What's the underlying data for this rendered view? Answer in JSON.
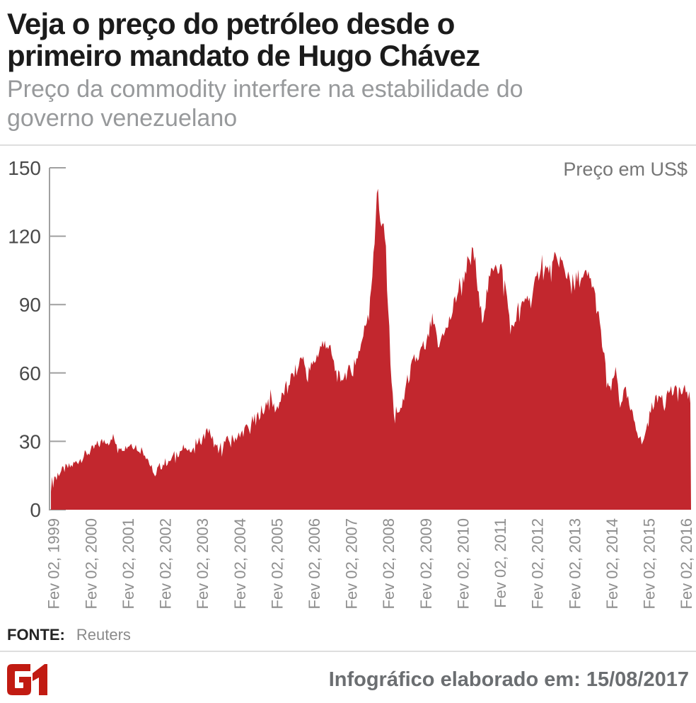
{
  "header": {
    "title": "Veja o preço do petróleo desde o\nprimeiro mandato de Hugo Chávez",
    "subtitle": "Preço da commodity interfere na estabilidade do\ngoverno venezuelano"
  },
  "chart": {
    "unit_label": "Preço em US$"
  },
  "source": {
    "label": "FONTE:",
    "value": "Reuters"
  },
  "footer": {
    "logo_alt": "G1",
    "note": "Infográfico elaborado em: 15/08/2017"
  },
  "colors": {
    "area": "#c2272e",
    "axis": "#a0a0a0",
    "y_label": "#4a4a4a",
    "x_label": "#8e8e8e",
    "logo": "#c11b12"
  },
  "chart_data": {
    "type": "area",
    "title": "Preço do petróleo desde o primeiro mandato de Hugo Chávez",
    "ylabel": "Preço em US$",
    "xlabel": "",
    "ylim": [
      0,
      150
    ],
    "yticks": [
      0,
      30,
      60,
      90,
      120,
      150
    ],
    "grid": false,
    "legend": "none",
    "x_unit": "decimal_year",
    "xticks": [
      {
        "t": 1999.09,
        "label": "Fev 02, 1999"
      },
      {
        "t": 2000.09,
        "label": "Fev 02, 2000"
      },
      {
        "t": 2001.09,
        "label": "Fev 02, 2001"
      },
      {
        "t": 2002.09,
        "label": "Fev 02, 2002"
      },
      {
        "t": 2003.09,
        "label": "Fev 02, 2003"
      },
      {
        "t": 2004.09,
        "label": "Fev 02, 2004"
      },
      {
        "t": 2005.09,
        "label": "Fev 02, 2005"
      },
      {
        "t": 2006.09,
        "label": "Fev 02, 2006"
      },
      {
        "t": 2007.09,
        "label": "Fev 02, 2007"
      },
      {
        "t": 2008.09,
        "label": "Fev 02, 2008"
      },
      {
        "t": 2009.09,
        "label": "Fev 02, 2009"
      },
      {
        "t": 2010.09,
        "label": "Fev 02, 2010"
      },
      {
        "t": 2011.09,
        "label": "Fev 02, 2011"
      },
      {
        "t": 2012.09,
        "label": "Fev 02, 2012"
      },
      {
        "t": 2013.09,
        "label": "Fev 02, 2013"
      },
      {
        "t": 2014.09,
        "label": "Fev 02, 2014"
      },
      {
        "t": 2015.09,
        "label": "Fev 02, 2015"
      },
      {
        "t": 2016.09,
        "label": "Fev 02, 2016"
      }
    ],
    "points": [
      [
        1999.02,
        12
      ],
      [
        1999.14,
        15
      ],
      [
        1999.27,
        16.5
      ],
      [
        1999.4,
        18
      ],
      [
        1999.56,
        19
      ],
      [
        1999.71,
        21
      ],
      [
        1999.86,
        23
      ],
      [
        2000.01,
        25
      ],
      [
        2000.13,
        26
      ],
      [
        2000.24,
        28
      ],
      [
        2000.35,
        29
      ],
      [
        2000.47,
        31
      ],
      [
        2000.58,
        30
      ],
      [
        2000.7,
        31.5
      ],
      [
        2000.81,
        29
      ],
      [
        2000.93,
        28
      ],
      [
        2001.04,
        27.5
      ],
      [
        2001.15,
        29
      ],
      [
        2001.27,
        28.5
      ],
      [
        2001.38,
        27
      ],
      [
        2001.5,
        26
      ],
      [
        2001.61,
        23
      ],
      [
        2001.72,
        18
      ],
      [
        2001.84,
        16.5
      ],
      [
        2001.95,
        19
      ],
      [
        2002.07,
        20.5
      ],
      [
        2002.18,
        21.5
      ],
      [
        2002.29,
        23
      ],
      [
        2002.41,
        25
      ],
      [
        2002.52,
        26
      ],
      [
        2002.64,
        27.5
      ],
      [
        2002.75,
        27
      ],
      [
        2002.87,
        28.5
      ],
      [
        2002.98,
        30
      ],
      [
        2003.09,
        31
      ],
      [
        2003.21,
        34
      ],
      [
        2003.28,
        36
      ],
      [
        2003.36,
        31
      ],
      [
        2003.46,
        26.5
      ],
      [
        2003.55,
        27
      ],
      [
        2003.66,
        29
      ],
      [
        2003.78,
        30.5
      ],
      [
        2003.89,
        31
      ],
      [
        2004.01,
        32
      ],
      [
        2004.12,
        33.5
      ],
      [
        2004.24,
        35
      ],
      [
        2004.35,
        37.5
      ],
      [
        2004.46,
        39
      ],
      [
        2004.58,
        41
      ],
      [
        2004.69,
        44
      ],
      [
        2004.81,
        47
      ],
      [
        2004.92,
        50
      ],
      [
        2004.99,
        45.5
      ],
      [
        2005.07,
        44
      ],
      [
        2005.19,
        48
      ],
      [
        2005.3,
        52
      ],
      [
        2005.41,
        56
      ],
      [
        2005.53,
        59
      ],
      [
        2005.64,
        62
      ],
      [
        2005.76,
        68
      ],
      [
        2005.83,
        64
      ],
      [
        2005.91,
        59
      ],
      [
        2005.99,
        62
      ],
      [
        2006.08,
        64
      ],
      [
        2006.18,
        68
      ],
      [
        2006.27,
        71.5
      ],
      [
        2006.37,
        74.5
      ],
      [
        2006.46,
        72
      ],
      [
        2006.56,
        68
      ],
      [
        2006.63,
        63
      ],
      [
        2006.71,
        59
      ],
      [
        2006.79,
        57
      ],
      [
        2006.88,
        59
      ],
      [
        2006.97,
        60
      ],
      [
        2007.09,
        61
      ],
      [
        2007.16,
        65
      ],
      [
        2007.26,
        68
      ],
      [
        2007.36,
        73
      ],
      [
        2007.45,
        79
      ],
      [
        2007.53,
        86
      ],
      [
        2007.6,
        95
      ],
      [
        2007.66,
        104
      ],
      [
        2007.72,
        117
      ],
      [
        2007.75,
        130
      ],
      [
        2007.79,
        146
      ],
      [
        2007.83,
        137
      ],
      [
        2007.87,
        126
      ],
      [
        2007.91,
        119
      ],
      [
        2007.94,
        126
      ],
      [
        2007.98,
        124
      ],
      [
        2008.02,
        112
      ],
      [
        2008.06,
        97
      ],
      [
        2008.1,
        83
      ],
      [
        2008.13,
        70
      ],
      [
        2008.17,
        58
      ],
      [
        2008.21,
        47
      ],
      [
        2008.25,
        39
      ],
      [
        2008.28,
        42
      ],
      [
        2008.32,
        48
      ],
      [
        2008.36,
        43
      ],
      [
        2008.4,
        41
      ],
      [
        2008.46,
        46
      ],
      [
        2008.51,
        52
      ],
      [
        2008.57,
        55
      ],
      [
        2008.63,
        58
      ],
      [
        2008.69,
        61
      ],
      [
        2008.74,
        64
      ],
      [
        2008.8,
        66
      ],
      [
        2008.86,
        69
      ],
      [
        2008.91,
        67
      ],
      [
        2008.97,
        70
      ],
      [
        2009.03,
        72
      ],
      [
        2009.09,
        71
      ],
      [
        2009.14,
        74
      ],
      [
        2009.2,
        79
      ],
      [
        2009.26,
        83
      ],
      [
        2009.31,
        80
      ],
      [
        2009.37,
        76
      ],
      [
        2009.43,
        72
      ],
      [
        2009.48,
        74
      ],
      [
        2009.54,
        77
      ],
      [
        2009.6,
        80
      ],
      [
        2009.66,
        78
      ],
      [
        2009.71,
        82
      ],
      [
        2009.77,
        85
      ],
      [
        2009.83,
        88
      ],
      [
        2009.88,
        92
      ],
      [
        2009.94,
        95
      ],
      [
        2010.0,
        99
      ],
      [
        2010.06,
        97
      ],
      [
        2010.11,
        102
      ],
      [
        2010.17,
        106
      ],
      [
        2010.23,
        109
      ],
      [
        2010.28,
        105
      ],
      [
        2010.32,
        111
      ],
      [
        2010.36,
        114
      ],
      [
        2010.4,
        110
      ],
      [
        2010.44,
        106
      ],
      [
        2010.47,
        99
      ],
      [
        2010.51,
        93
      ],
      [
        2010.55,
        88
      ],
      [
        2010.59,
        85
      ],
      [
        2010.65,
        87
      ],
      [
        2010.7,
        92
      ],
      [
        2010.76,
        97
      ],
      [
        2010.82,
        101
      ],
      [
        2010.87,
        105
      ],
      [
        2010.93,
        108
      ],
      [
        2010.97,
        110
      ],
      [
        2011.03,
        106
      ],
      [
        2011.08,
        108
      ],
      [
        2011.14,
        104
      ],
      [
        2011.2,
        100
      ],
      [
        2011.25,
        96
      ],
      [
        2011.31,
        88
      ],
      [
        2011.37,
        80
      ],
      [
        2011.43,
        78
      ],
      [
        2011.48,
        83
      ],
      [
        2011.54,
        86
      ],
      [
        2011.6,
        89
      ],
      [
        2011.65,
        87
      ],
      [
        2011.71,
        90
      ],
      [
        2011.77,
        92
      ],
      [
        2011.82,
        95
      ],
      [
        2011.88,
        91
      ],
      [
        2011.94,
        93
      ],
      [
        2011.99,
        96
      ],
      [
        2012.05,
        99
      ],
      [
        2012.11,
        103
      ],
      [
        2012.17,
        107
      ],
      [
        2012.22,
        110
      ],
      [
        2012.28,
        108
      ],
      [
        2012.34,
        104
      ],
      [
        2012.4,
        106
      ],
      [
        2012.45,
        103
      ],
      [
        2012.51,
        107
      ],
      [
        2012.57,
        110
      ],
      [
        2012.62,
        108
      ],
      [
        2012.68,
        110
      ],
      [
        2012.74,
        109
      ],
      [
        2012.8,
        105
      ],
      [
        2012.85,
        102
      ],
      [
        2012.91,
        104
      ],
      [
        2012.97,
        103
      ],
      [
        2013.02,
        100
      ],
      [
        2013.08,
        99
      ],
      [
        2013.14,
        101
      ],
      [
        2013.19,
        102
      ],
      [
        2013.25,
        101
      ],
      [
        2013.31,
        100
      ],
      [
        2013.37,
        102
      ],
      [
        2013.42,
        103
      ],
      [
        2013.48,
        101
      ],
      [
        2013.54,
        100
      ],
      [
        2013.59,
        98
      ],
      [
        2013.65,
        92
      ],
      [
        2013.71,
        87
      ],
      [
        2013.77,
        80
      ],
      [
        2013.82,
        74
      ],
      [
        2013.88,
        67
      ],
      [
        2013.94,
        60
      ],
      [
        2013.99,
        55
      ],
      [
        2014.05,
        51
      ],
      [
        2014.11,
        55
      ],
      [
        2014.17,
        61
      ],
      [
        2014.22,
        58
      ],
      [
        2014.28,
        52
      ],
      [
        2014.34,
        48
      ],
      [
        2014.39,
        50
      ],
      [
        2014.45,
        52
      ],
      [
        2014.51,
        49
      ],
      [
        2014.56,
        45
      ],
      [
        2014.62,
        42
      ],
      [
        2014.68,
        40
      ],
      [
        2014.74,
        37
      ],
      [
        2014.79,
        34
      ],
      [
        2014.85,
        31
      ],
      [
        2014.91,
        28.5
      ],
      [
        2014.96,
        33
      ],
      [
        2015.02,
        36
      ],
      [
        2015.08,
        39
      ],
      [
        2015.13,
        43
      ],
      [
        2015.19,
        46
      ],
      [
        2015.25,
        49
      ],
      [
        2015.31,
        47
      ],
      [
        2015.36,
        50
      ],
      [
        2015.42,
        52
      ],
      [
        2015.48,
        50
      ],
      [
        2015.53,
        48
      ],
      [
        2015.59,
        51
      ],
      [
        2015.65,
        53
      ],
      [
        2015.7,
        52
      ],
      [
        2015.76,
        50
      ],
      [
        2015.82,
        53
      ],
      [
        2015.88,
        54
      ],
      [
        2015.93,
        52
      ],
      [
        2015.99,
        50
      ],
      [
        2016.05,
        52
      ],
      [
        2016.1,
        53
      ],
      [
        2016.16,
        50
      ],
      [
        2016.22,
        48
      ]
    ],
    "texture": {
      "amp_base": 1.6,
      "amp_scale": 0.028,
      "amp_max": 4.2,
      "dip_chance": 0.09,
      "dip_extra": 1.1
    }
  }
}
